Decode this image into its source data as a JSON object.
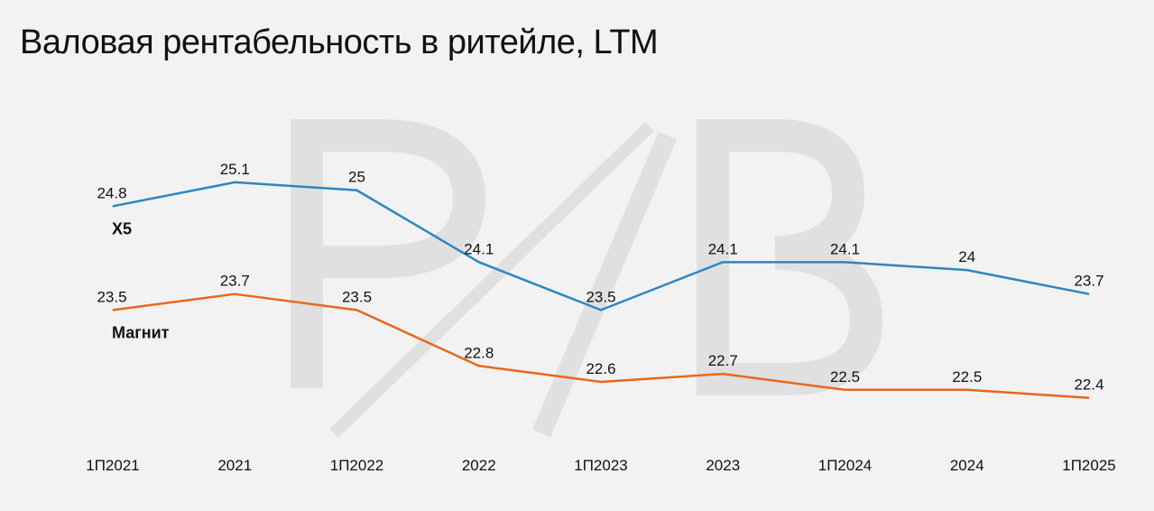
{
  "chart_data": {
    "type": "line",
    "title": "Валовая рентабельность в ритейле, LTM",
    "categories": [
      "1П2021",
      "2021",
      "1П2022",
      "2022",
      "1П2023",
      "2023",
      "1П2024",
      "2024",
      "1П2025"
    ],
    "ylim": [
      22.0,
      25.8
    ],
    "grid": false,
    "legend": "inline-left",
    "series": [
      {
        "name": "X5",
        "color": "#2e86c1",
        "values": [
          24.8,
          25.1,
          25,
          24.1,
          23.5,
          24.1,
          24.1,
          24,
          23.7
        ],
        "labels": [
          "24.8",
          "25.1",
          "25",
          "24.1",
          "23.5",
          "24.1",
          "24.1",
          "24",
          "23.7"
        ]
      },
      {
        "name": "Магнит",
        "color": "#e8671c",
        "values": [
          23.5,
          23.7,
          23.5,
          22.8,
          22.6,
          22.7,
          22.5,
          22.5,
          22.4
        ],
        "labels": [
          "23.5",
          "23.7",
          "23.5",
          "22.8",
          "22.6",
          "22.7",
          "22.5",
          "22.5",
          "22.4"
        ]
      }
    ]
  }
}
